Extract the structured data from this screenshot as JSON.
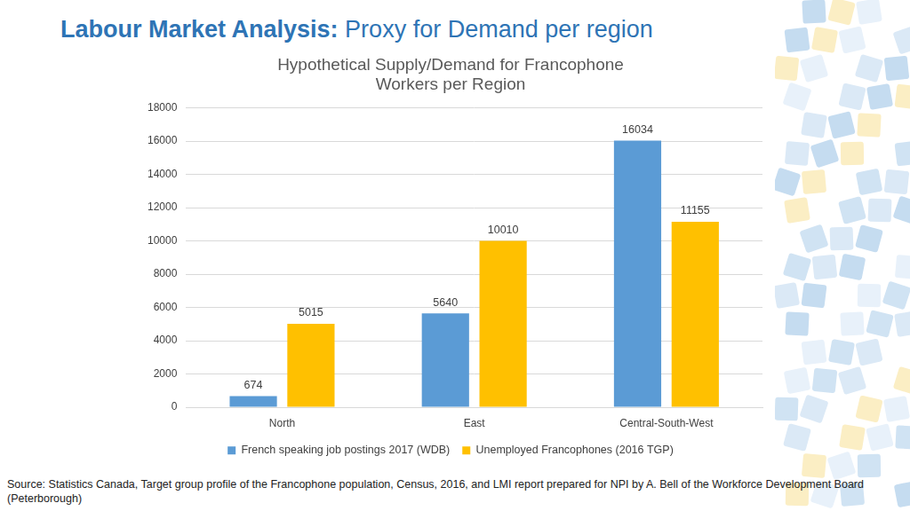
{
  "heading": {
    "bold": "Labour Market Analysis:",
    "rest": "Proxy for Demand per region"
  },
  "source": "Source: Statistics Canada, Target group profile of the Francophone population, Census, 2016, and LMI report prepared for NPI by A. Bell of the Workforce Development Board (Peterborough)",
  "chart_data": {
    "type": "bar",
    "title": "Hypothetical Supply/Demand for Francophone Workers per Region",
    "categories": [
      "North",
      "East",
      "Central-South-West"
    ],
    "series": [
      {
        "name": "French speaking job postings 2017 (WDB)",
        "color": "#5b9bd5",
        "values": [
          674,
          5640,
          16034
        ]
      },
      {
        "name": "Unemployed Francophones (2016 TGP)",
        "color": "#ffc000",
        "values": [
          5015,
          10010,
          11155
        ]
      }
    ],
    "ylim": [
      0,
      18000
    ],
    "yticks": [
      0,
      2000,
      4000,
      6000,
      8000,
      10000,
      12000,
      14000,
      16000,
      18000
    ],
    "grid": true,
    "legend": "bottom",
    "data_labels": true
  }
}
